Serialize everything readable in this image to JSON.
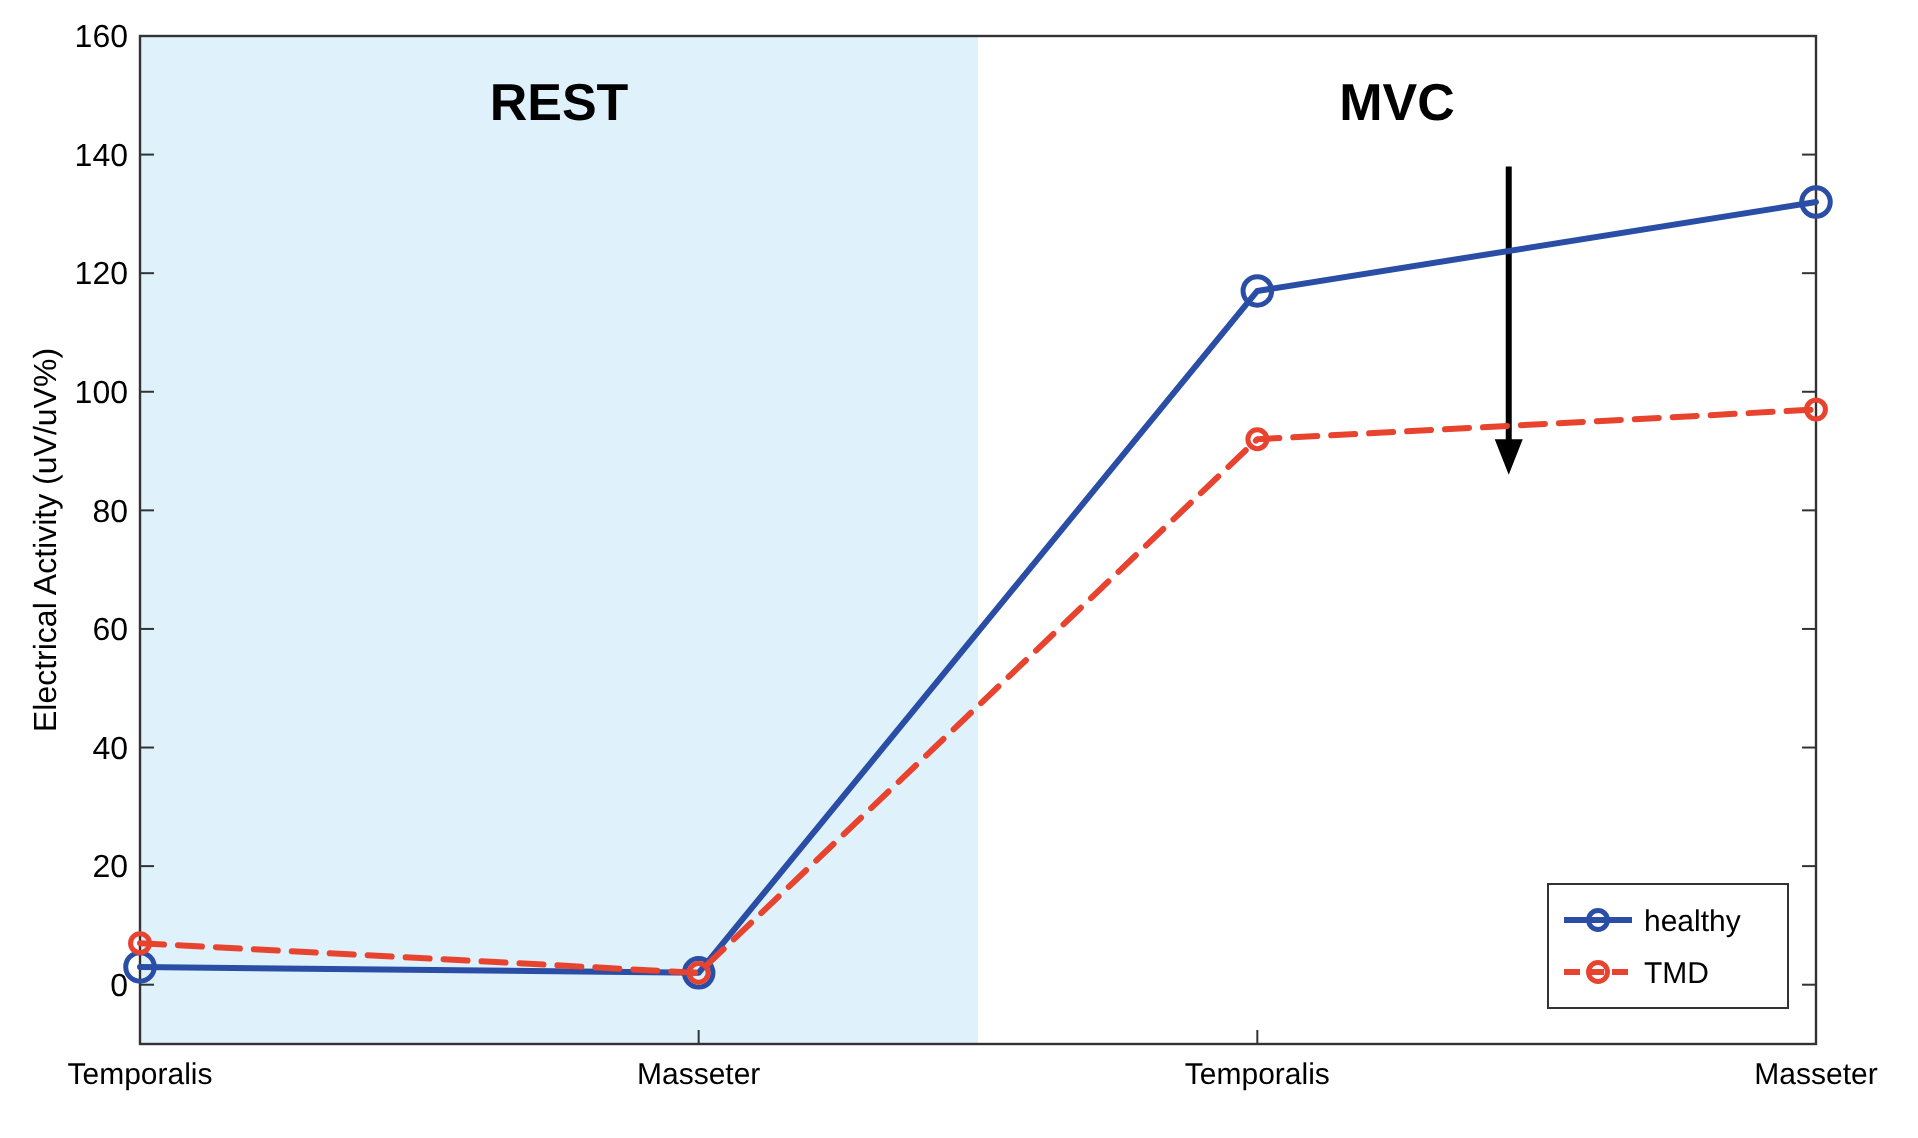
{
  "chart_data": {
    "type": "line",
    "ylabel": "Electrical Activity (uV/uV%)",
    "categories": [
      "Temporalis",
      "Masseter",
      "Temporalis",
      "Masseter"
    ],
    "ylim": [
      -10,
      160
    ],
    "yticks": [
      0,
      20,
      40,
      60,
      80,
      100,
      120,
      140,
      160
    ],
    "series": [
      {
        "name": "healthy",
        "color": "#2a4ea6",
        "values": [
          3,
          2,
          117,
          132
        ],
        "line_style": "solid"
      },
      {
        "name": "TMD",
        "color": "#e8432e",
        "values": [
          7,
          2,
          92,
          97
        ],
        "line_style": "dashed"
      }
    ],
    "annotations": [
      "REST",
      "MVC"
    ],
    "marker": "circle",
    "grid": false,
    "legend": "bottom right"
  }
}
